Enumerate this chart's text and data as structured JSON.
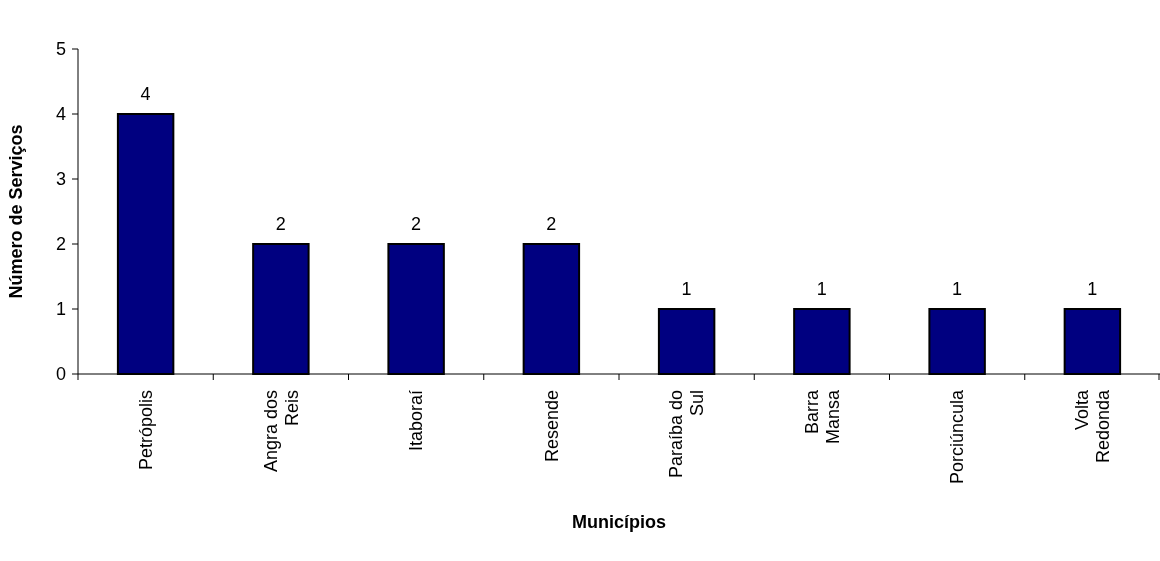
{
  "chart_data": {
    "type": "bar",
    "xlabel": "Municípios",
    "ylabel": "Número de Serviços",
    "categories": [
      "Petrópolis",
      "Angra dos\nReis",
      "Itaboraí",
      "Resende",
      "Paraíba do\nSul",
      "Barra\nMansa",
      "Porciúncula",
      "Volta\nRedonda"
    ],
    "values": [
      4,
      2,
      2,
      2,
      1,
      1,
      1,
      1
    ],
    "color": "#000080",
    "ylim": [
      0,
      5
    ],
    "yticks": [
      0,
      1,
      2,
      3,
      4,
      5
    ],
    "data_labels": true,
    "grid": false
  }
}
